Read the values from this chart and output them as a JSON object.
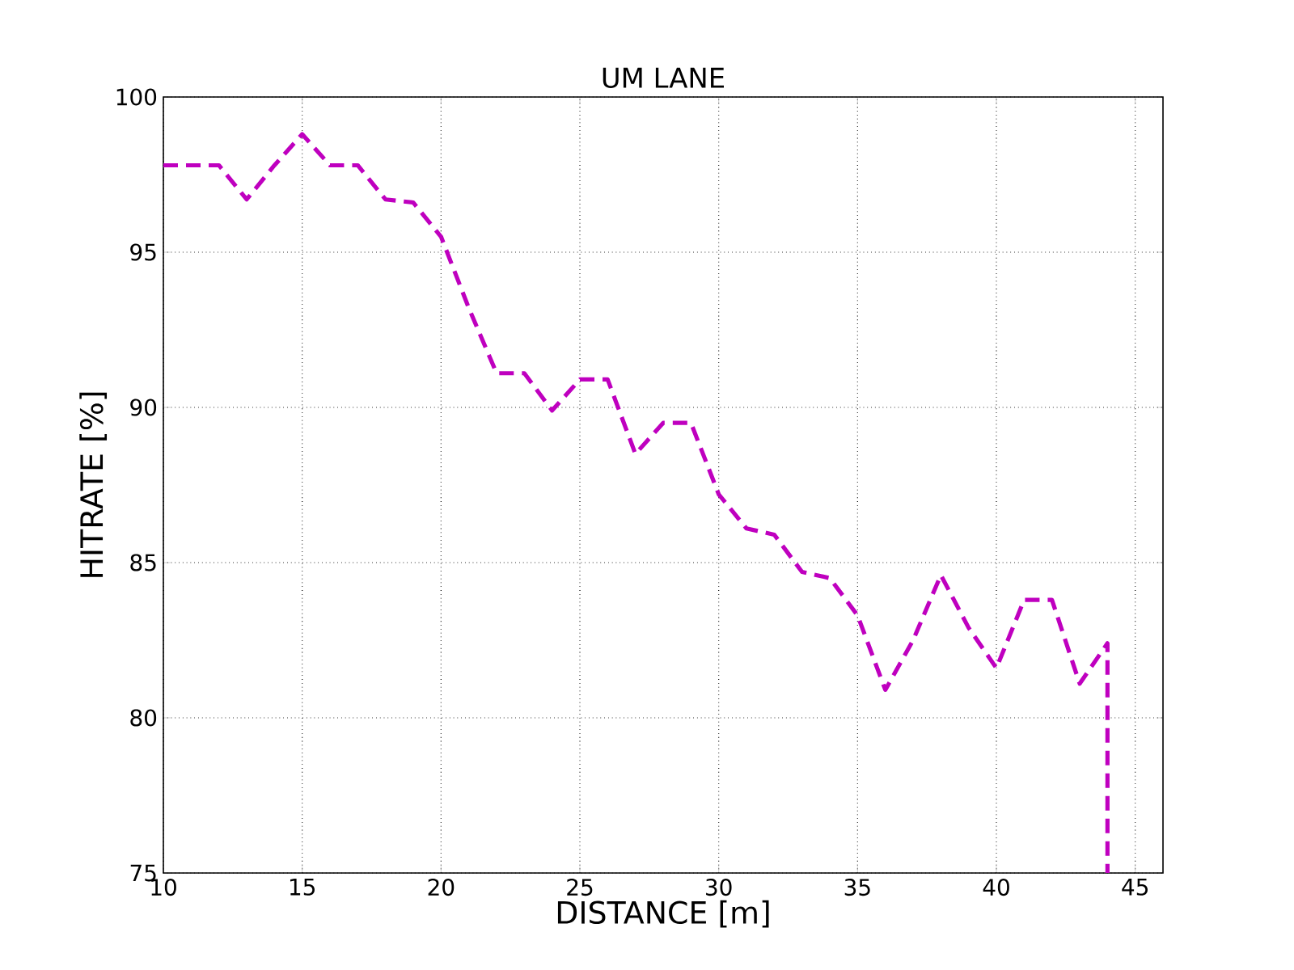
{
  "chart_data": {
    "type": "line",
    "title": "UM LANE",
    "xlabel": "DISTANCE [m]",
    "ylabel": "HITRATE [%]",
    "x": [
      10,
      11,
      12,
      13,
      14,
      15,
      16,
      17,
      18,
      19,
      20,
      21,
      22,
      23,
      24,
      25,
      26,
      27,
      28,
      29,
      30,
      31,
      32,
      33,
      34,
      35,
      36,
      37,
      38,
      39,
      40,
      41,
      42,
      43,
      44,
      44
    ],
    "series": [
      {
        "color": "#bf00bf",
        "values": [
          97.8,
          97.8,
          97.8,
          96.7,
          97.8,
          98.8,
          97.8,
          97.8,
          96.7,
          96.6,
          95.5,
          93.2,
          91.1,
          91.1,
          89.9,
          90.9,
          90.9,
          88.5,
          89.5,
          89.5,
          87.2,
          86.1,
          85.9,
          84.7,
          84.5,
          83.3,
          80.9,
          82.5,
          84.6,
          82.9,
          81.6,
          83.8,
          83.8,
          81.1,
          82.4,
          75
        ]
      }
    ],
    "xlim": [
      10,
      46
    ],
    "ylim": [
      75,
      100
    ],
    "xticks": [
      10,
      15,
      20,
      25,
      30,
      35,
      40,
      45
    ],
    "yticks": [
      75,
      80,
      85,
      90,
      95,
      100
    ],
    "grid": true,
    "line_style": "dashed",
    "marker": "none"
  }
}
